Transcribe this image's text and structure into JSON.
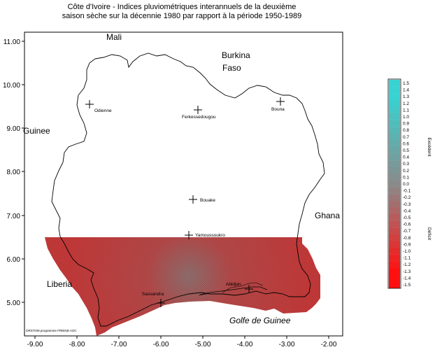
{
  "title": {
    "line1": "Côte d'Ivoire - Indices pluviométriques interannuels de la deuxième",
    "line2": "saison sèche sur la décennie 1980 par rapport à la période 1950-1989"
  },
  "axes": {
    "x_ticks": [
      "-9.00",
      "-8.00",
      "-7.00",
      "-6.00",
      "-5.00",
      "-4.00",
      "-3.00",
      "-2.00"
    ],
    "y_ticks": [
      "11.00",
      "10.00",
      "9.00",
      "8.00",
      "7.00",
      "6.00",
      "5.00"
    ]
  },
  "countries": {
    "mali": "Mali",
    "burkina_1": "Burkina",
    "burkina_2": "Faso",
    "guinee": "Guinee",
    "ghana": "Ghana",
    "liberia": "Liberia",
    "golfe": "Golfe de Guinee"
  },
  "cities": [
    {
      "name": "Odienne"
    },
    {
      "name": "Ferkessedougou"
    },
    {
      "name": "Bouna"
    },
    {
      "name": "Bouake"
    },
    {
      "name": "Yamoussoukro"
    },
    {
      "name": "Sassandra"
    },
    {
      "name": "Abidjan"
    }
  ],
  "credit": "ORSTOM programme FRIEND AOC",
  "legend": {
    "values": [
      "1.5",
      "1.4",
      "1.3",
      "1.2",
      "1.1",
      "1.0",
      "0.9",
      "0.8",
      "0.7",
      "0.6",
      "0.5",
      "0.4",
      "0.3",
      "0.2",
      "0.1",
      "0.0",
      "-0.1",
      "-0.2",
      "-0.3",
      "-0.4",
      "-0.5",
      "-0.6",
      "-0.7",
      "-0.8",
      "-0.9",
      "-1.0",
      "-1.1",
      "-1.2",
      "-1.3",
      "-1.4",
      "-1.5"
    ],
    "excedent": "Excédent",
    "deficit": "Déficit"
  },
  "colors": {
    "deficit": "#c43c3c",
    "excedent": "#37d3d3",
    "neutral": "#8a8a8a"
  }
}
